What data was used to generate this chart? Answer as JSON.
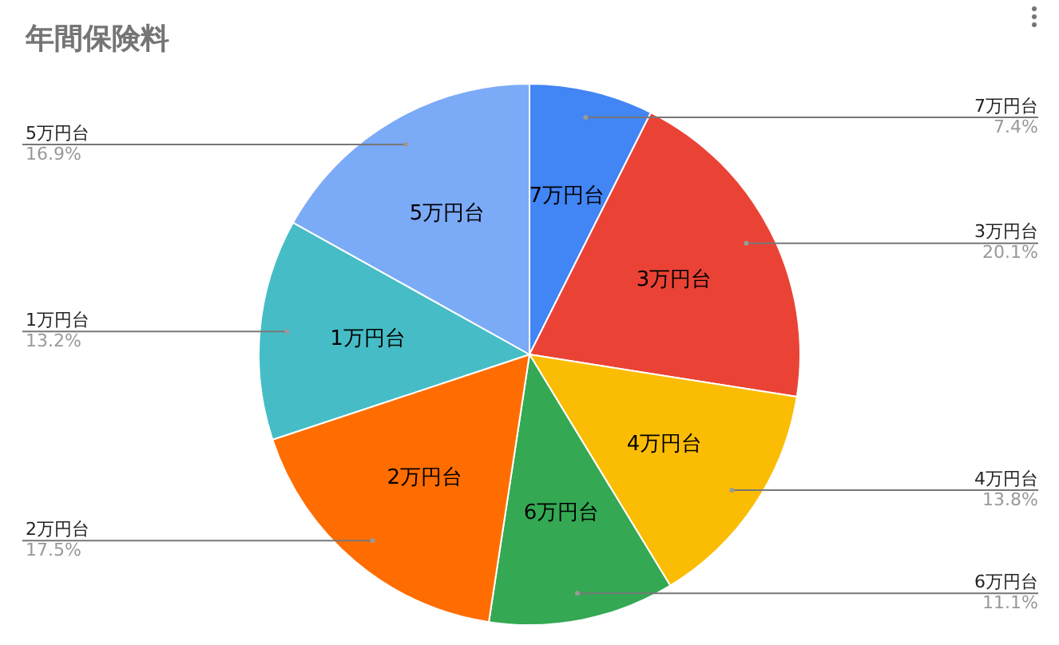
{
  "chart_data": {
    "type": "pie",
    "title": "年間保険料",
    "categories": [
      "7万円台",
      "3万円台",
      "4万円台",
      "6万円台",
      "2万円台",
      "1万円台",
      "5万円台"
    ],
    "values": [
      7.4,
      20.1,
      13.8,
      11.1,
      17.5,
      13.2,
      16.9
    ],
    "colors": [
      "#4285f4",
      "#ea4335",
      "#fbbc04",
      "#34a853",
      "#ff6d01",
      "#46bdc6",
      "#7baaf7"
    ],
    "value_labels": [
      "7.4%",
      "20.1%",
      "13.8%",
      "11.1%",
      "17.5%",
      "13.2%",
      "16.9%"
    ],
    "legend": false
  }
}
